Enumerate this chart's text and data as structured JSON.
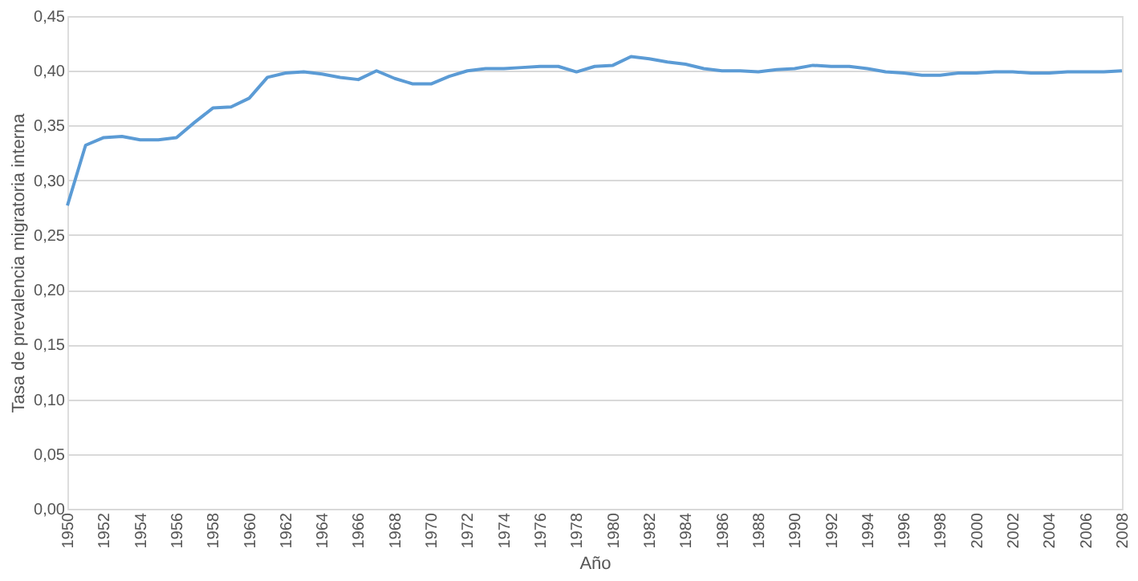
{
  "chart_data": {
    "type": "line",
    "xlabel": "Año",
    "ylabel": "Tasa de prevalencia migratoria interna",
    "x": [
      1950,
      1951,
      1952,
      1953,
      1954,
      1955,
      1956,
      1957,
      1958,
      1959,
      1960,
      1961,
      1962,
      1963,
      1964,
      1965,
      1966,
      1967,
      1968,
      1969,
      1970,
      1971,
      1972,
      1973,
      1974,
      1975,
      1976,
      1977,
      1978,
      1979,
      1980,
      1981,
      1982,
      1983,
      1984,
      1985,
      1986,
      1987,
      1988,
      1989,
      1990,
      1991,
      1992,
      1993,
      1994,
      1995,
      1996,
      1997,
      1998,
      1999,
      2000,
      2001,
      2002,
      2003,
      2004,
      2005,
      2006,
      2007,
      2008
    ],
    "series": [
      {
        "color": "#5b9bd5",
        "values": [
          0.277,
          0.332,
          0.339,
          0.34,
          0.337,
          0.337,
          0.339,
          0.353,
          0.366,
          0.367,
          0.375,
          0.394,
          0.398,
          0.399,
          0.397,
          0.394,
          0.392,
          0.4,
          0.393,
          0.388,
          0.388,
          0.395,
          0.4,
          0.402,
          0.402,
          0.403,
          0.404,
          0.404,
          0.399,
          0.404,
          0.405,
          0.413,
          0.411,
          0.408,
          0.406,
          0.402,
          0.4,
          0.4,
          0.399,
          0.401,
          0.402,
          0.405,
          0.404,
          0.404,
          0.402,
          0.399,
          0.398,
          0.396,
          0.396,
          0.398,
          0.398,
          0.399,
          0.399,
          0.398,
          0.398,
          0.399,
          0.399,
          0.399,
          0.4
        ]
      }
    ],
    "xlim": [
      1950,
      2008
    ],
    "xticks": [
      1950,
      1952,
      1954,
      1956,
      1958,
      1960,
      1962,
      1964,
      1966,
      1968,
      1970,
      1972,
      1974,
      1976,
      1978,
      1980,
      1982,
      1984,
      1986,
      1988,
      1990,
      1992,
      1994,
      1996,
      1998,
      2000,
      2002,
      2004,
      2006,
      2008
    ],
    "ylim": [
      0,
      0.45
    ],
    "yticks": [
      {
        "value": 0,
        "label": "0,00"
      },
      {
        "value": 0.05,
        "label": "0,05"
      },
      {
        "value": 0.1,
        "label": "0,10"
      },
      {
        "value": 0.15,
        "label": "0,15"
      },
      {
        "value": 0.2,
        "label": "0,20"
      },
      {
        "value": 0.25,
        "label": "0,25"
      },
      {
        "value": 0.3,
        "label": "0,30"
      },
      {
        "value": 0.35,
        "label": "0,35"
      },
      {
        "value": 0.4,
        "label": "0,40"
      },
      {
        "value": 0.45,
        "label": "0,45"
      }
    ],
    "grid": "y",
    "legend": false,
    "marker": "none",
    "line_style": "solid"
  }
}
